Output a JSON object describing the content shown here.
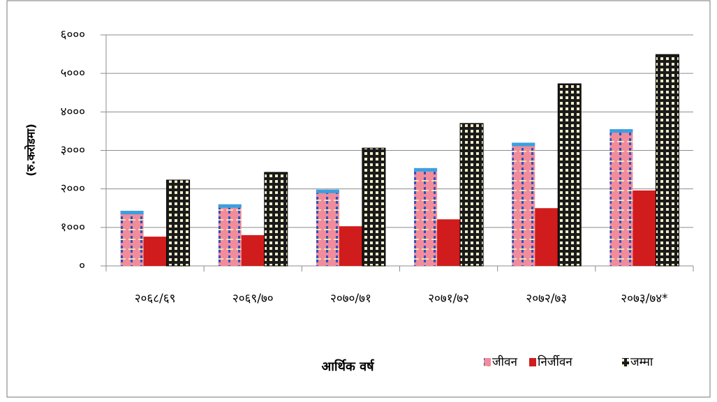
{
  "chart_data": {
    "type": "bar",
    "ylabel": "(रु.करोडमा)",
    "xlabel": "आर्थिक वर्ष",
    "categories": [
      "२०६८/६९",
      "२०६९/७०",
      "२०७०/७१",
      "२०७१/७२",
      "२०७२/७३",
      "२०७३/७४*"
    ],
    "series": [
      {
        "name": "जीवन",
        "color": "#f08c9c",
        "values": [
          1430,
          1600,
          1980,
          2540,
          3200,
          3550
        ]
      },
      {
        "name": "निर्जीवन",
        "color": "#d01c1c",
        "values": [
          760,
          800,
          1030,
          1210,
          1500,
          1960
        ]
      },
      {
        "name": "जम्मा",
        "color": "#1a1a1a",
        "values": [
          2230,
          2430,
          3060,
          3700,
          4730,
          5490
        ]
      }
    ],
    "ylim": [
      0,
      6000
    ],
    "yticks": [
      {
        "value": 0,
        "label": "०"
      },
      {
        "value": 1000,
        "label": "१०००"
      },
      {
        "value": 2000,
        "label": "२०००"
      },
      {
        "value": 3000,
        "label": "३०००"
      },
      {
        "value": 4000,
        "label": "४०००"
      },
      {
        "value": 5000,
        "label": "५०००"
      },
      {
        "value": 6000,
        "label": "६०००"
      }
    ],
    "grid": true,
    "legend": "bottom-right"
  }
}
